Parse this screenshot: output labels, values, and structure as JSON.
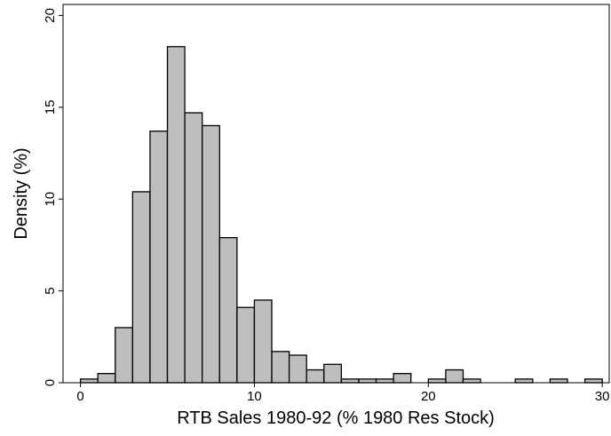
{
  "chart_data": {
    "type": "histogram",
    "x_label": "RTB Sales 1980-92 (% 1980 Res Stock)",
    "y_label": "Density (%)",
    "bins": [
      0,
      1,
      2,
      3,
      4,
      5,
      6,
      7,
      8,
      9,
      10,
      11,
      12,
      13,
      14,
      15,
      16,
      17,
      18,
      19,
      20,
      21,
      22,
      23,
      24,
      25,
      26,
      27,
      28,
      29,
      30
    ],
    "values": [
      0.2,
      0.5,
      3.0,
      10.4,
      13.7,
      18.3,
      14.7,
      14.0,
      7.9,
      4.1,
      4.5,
      1.7,
      1.5,
      0.7,
      1.0,
      0.2,
      0.2,
      0.2,
      0.5,
      0,
      0.2,
      0.7,
      0.2,
      0,
      0,
      0.2,
      0,
      0.2,
      0,
      0.2
    ],
    "color": "#bebebe",
    "xlim": [
      -1,
      30.4
    ],
    "ylim": [
      0,
      20.6
    ],
    "xticks": [
      0,
      10,
      20,
      30
    ],
    "yticks": [
      0,
      5,
      10,
      15,
      20
    ],
    "grid": false
  }
}
